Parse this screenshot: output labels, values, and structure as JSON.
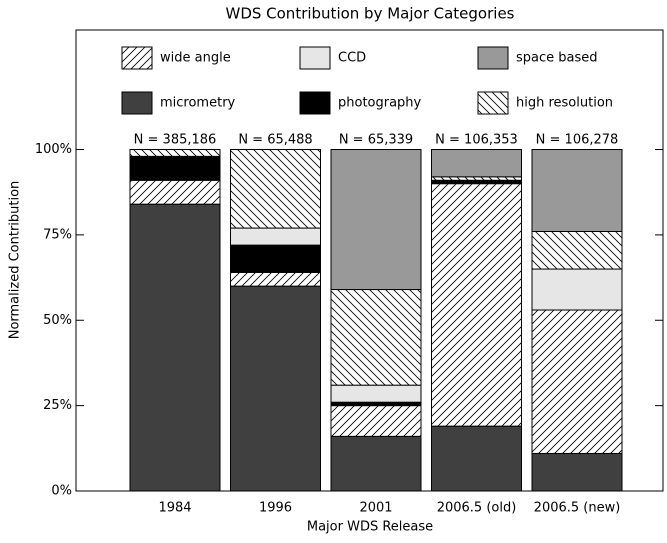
{
  "chart_data": {
    "type": "stacked_bar",
    "title": "WDS Contribution by Major Categories",
    "x_label": "Major WDS Release",
    "y_label": "Normalized Contribution",
    "categories": [
      "1984",
      "1996",
      "2001",
      "2006.5 (old)",
      "2006.5 (new)"
    ],
    "annotations": [
      "N = 385,186",
      "N = 65,488",
      "N = 65,339",
      "N = 106,353",
      "N = 106,278"
    ],
    "series": [
      {
        "name": "micrometry",
        "color": "#404040",
        "values": [
          84,
          60,
          16,
          19,
          11
        ]
      },
      {
        "name": "wide angle",
        "color": "#ffffff",
        "hatch": "forward",
        "values": [
          7,
          4,
          9,
          71,
          42
        ]
      },
      {
        "name": "photography",
        "color": "#000000",
        "values": [
          7,
          8,
          1,
          1,
          0
        ]
      },
      {
        "name": "CCD",
        "color": "#e6e6e6",
        "values": [
          0,
          5,
          5,
          0,
          12
        ]
      },
      {
        "name": "high resolution",
        "color": "#ffffff",
        "hatch": "back",
        "values": [
          2,
          23,
          28,
          1,
          11
        ]
      },
      {
        "name": "space based",
        "color": "#999999",
        "values": [
          0,
          0,
          41,
          8,
          24
        ]
      }
    ],
    "legend_order": [
      1,
      3,
      5,
      0,
      2,
      4
    ],
    "ylim": [
      0,
      135
    ],
    "yticks": [
      {
        "value": 0,
        "label": "0%"
      },
      {
        "value": 25,
        "label": "25%"
      },
      {
        "value": 50,
        "label": "50%"
      },
      {
        "value": 75,
        "label": "75%"
      },
      {
        "value": 100,
        "label": "100%"
      }
    ]
  }
}
